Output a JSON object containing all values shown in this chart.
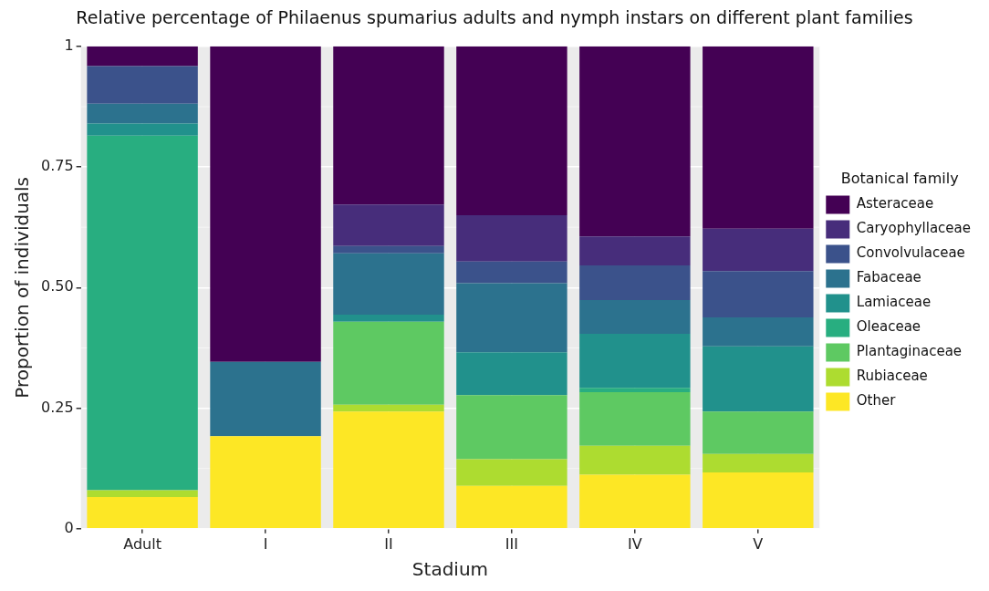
{
  "chart_data": {
    "type": "bar",
    "title": "Relative percentage of Philaenus spumarius adults and nymph instars on different plant families",
    "xlabel": "Stadium",
    "ylabel": "Proportion of individuals",
    "legend_title": "Botanical family",
    "categories": [
      "Adult",
      "I",
      "II",
      "III",
      "IV",
      "V"
    ],
    "stacked": true,
    "series": [
      {
        "name": "Other",
        "color": "#fde725",
        "values": [
          0.066,
          0.192,
          0.243,
          0.089,
          0.112,
          0.117
        ]
      },
      {
        "name": "Rubiaceae",
        "color": "#addc30",
        "values": [
          0.014,
          0,
          0.014,
          0.055,
          0.06,
          0.038
        ]
      },
      {
        "name": "Plantaginaceae",
        "color": "#5ec962",
        "values": [
          0,
          0,
          0.172,
          0.133,
          0.111,
          0.088
        ]
      },
      {
        "name": "Oleaceae",
        "color": "#28ae80",
        "values": [
          0.735,
          0,
          0,
          0,
          0.009,
          0
        ]
      },
      {
        "name": "Lamiaceae",
        "color": "#21918c",
        "values": [
          0.025,
          0,
          0.015,
          0.089,
          0.112,
          0.135
        ]
      },
      {
        "name": "Fabaceae",
        "color": "#2c728e",
        "values": [
          0.041,
          0.154,
          0.127,
          0.143,
          0.07,
          0.06
        ]
      },
      {
        "name": "Convolvulaceae",
        "color": "#3b528b",
        "values": [
          0.078,
          0,
          0.015,
          0.045,
          0.072,
          0.096
        ]
      },
      {
        "name": "Caryophyllaceae",
        "color": "#472d7b",
        "values": [
          0,
          0,
          0.086,
          0.096,
          0.06,
          0.088
        ]
      },
      {
        "name": "Asteraceae",
        "color": "#440154",
        "values": [
          0.041,
          0.654,
          0.328,
          0.35,
          0.394,
          0.378
        ]
      }
    ],
    "ylim": [
      0,
      1
    ],
    "yticks": [
      0,
      {
        "value": 0.25,
        "label": "0.25"
      },
      {
        "value": 0.5,
        "label": "0.50"
      },
      {
        "value": 0.75,
        "label": "0.75"
      },
      1
    ],
    "grid": true,
    "legend": "right"
  }
}
